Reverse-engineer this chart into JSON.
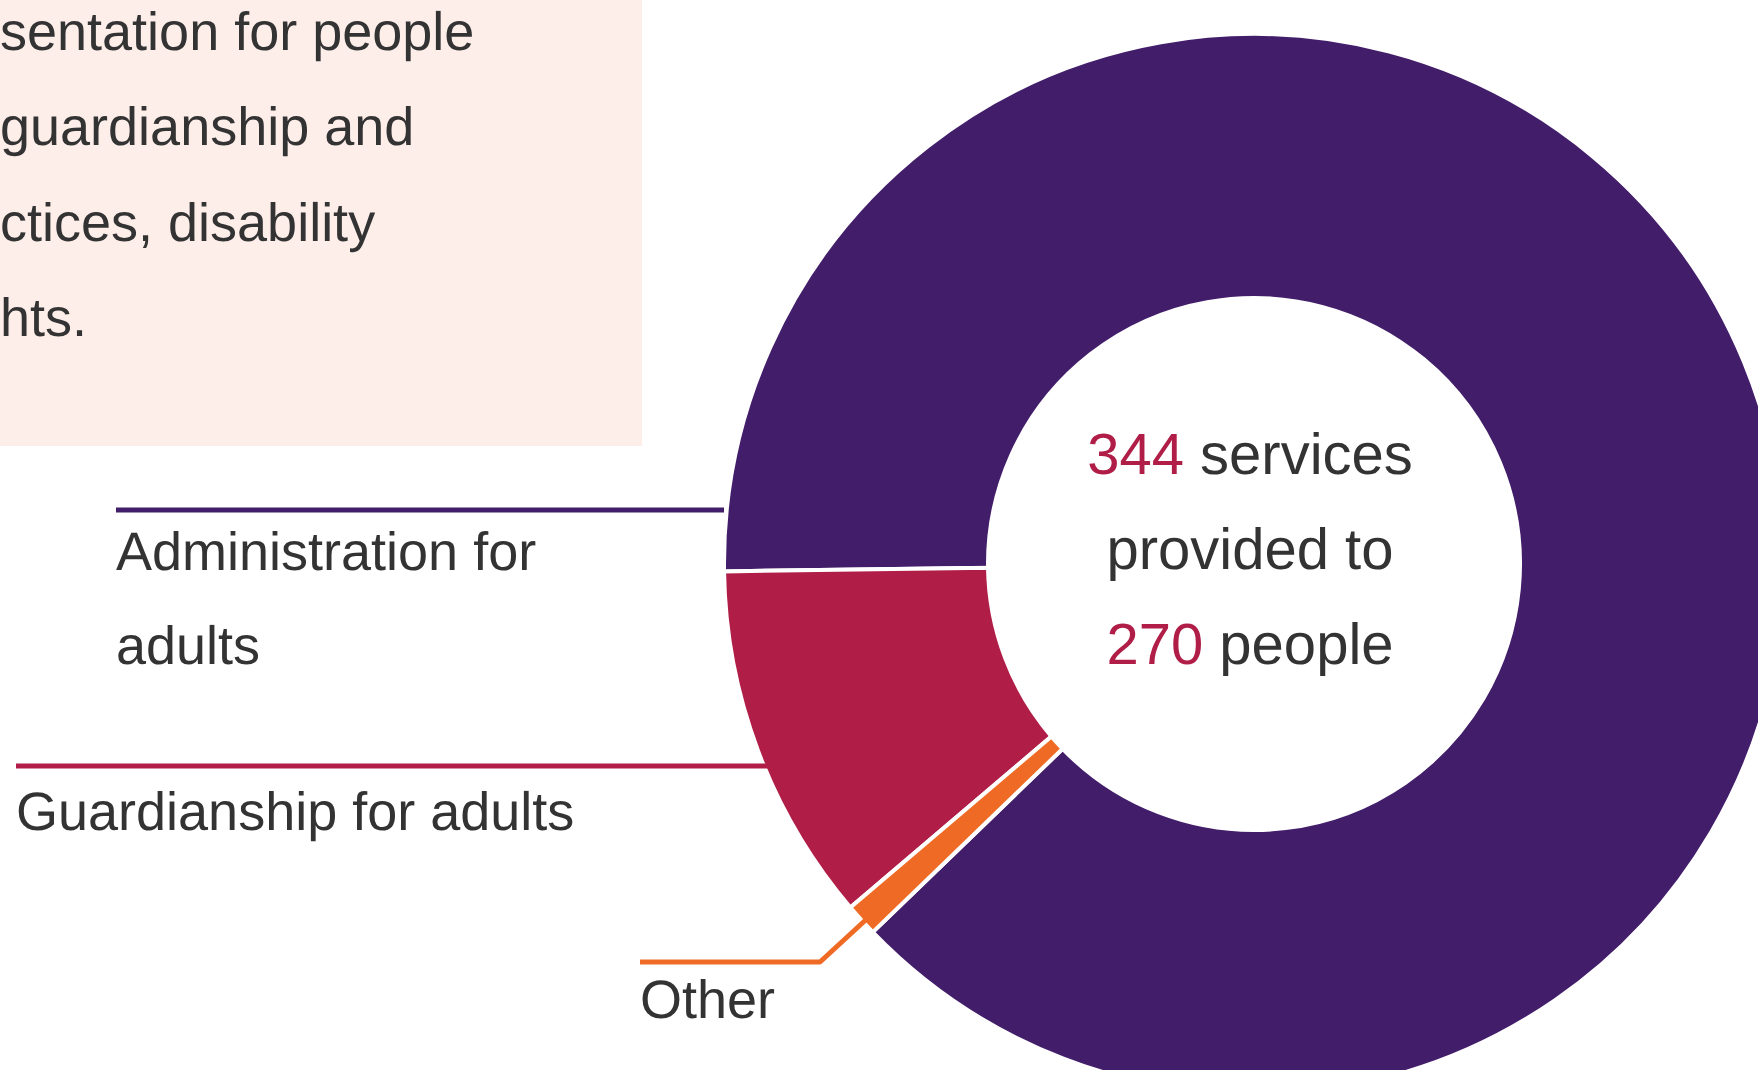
{
  "chart_data": {
    "type": "donut",
    "categories": [
      "Administration for adults",
      "Guardianship for adults",
      "Other"
    ],
    "values": [
      88,
      11,
      1
    ],
    "colors": [
      "#421d6a",
      "#b01e48",
      "#ef6a24"
    ],
    "annotations": [
      "sentation for people",
      "guardianship and",
      "ctices, disability",
      "hts.",
      "344 services",
      "provided to",
      "270 people"
    ]
  }
}
